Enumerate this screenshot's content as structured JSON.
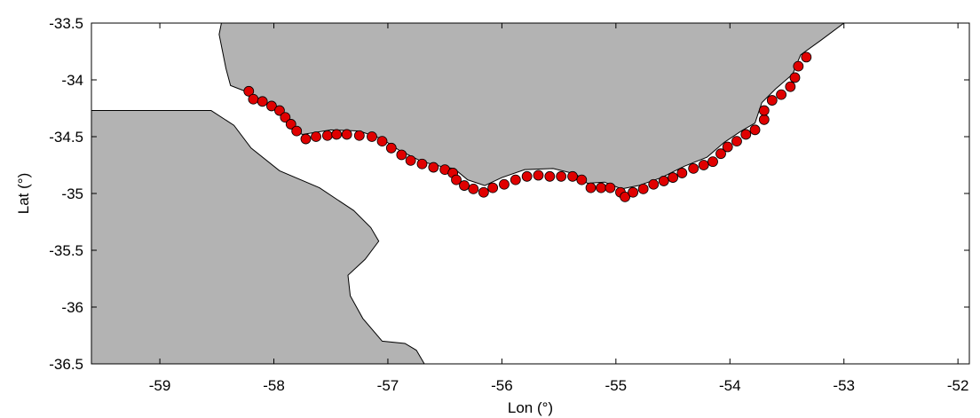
{
  "chart_data": {
    "type": "scatter",
    "xlabel": "Lon (°)",
    "ylabel": "Lat (°)",
    "xlim": [
      -59.6,
      -51.9
    ],
    "ylim": [
      -36.5,
      -33.5
    ],
    "xticks": [
      -59,
      -58,
      -57,
      -56,
      -55,
      -54,
      -53,
      -52
    ],
    "xtick_labels": [
      "-59",
      "-58",
      "-57",
      "-56",
      "-55",
      "-54",
      "-53",
      "-52"
    ],
    "yticks": [
      -33.5,
      -34,
      -34.5,
      -35,
      -35.5,
      -36,
      -36.5
    ],
    "ytick_labels": [
      "-33.5",
      "-34",
      "-34.5",
      "-35",
      "-35.5",
      "-36",
      "-36.5"
    ],
    "grid": false,
    "land_color": "#b3b3b3",
    "water_color": "#ffffff",
    "coast_color": "#000000",
    "marker_color": "#e00000",
    "marker_edge_color": "#000000",
    "coastline_north": [
      [
        -58.46,
        -33.5
      ],
      [
        -58.48,
        -33.6
      ],
      [
        -58.45,
        -33.75
      ],
      [
        -58.42,
        -33.9
      ],
      [
        -58.38,
        -34.05
      ],
      [
        -58.2,
        -34.12
      ],
      [
        -58.05,
        -34.22
      ],
      [
        -57.95,
        -34.3
      ],
      [
        -57.85,
        -34.42
      ],
      [
        -57.75,
        -34.48
      ],
      [
        -57.5,
        -34.44
      ],
      [
        -57.25,
        -34.45
      ],
      [
        -57.05,
        -34.52
      ],
      [
        -56.9,
        -34.62
      ],
      [
        -56.7,
        -34.72
      ],
      [
        -56.5,
        -34.77
      ],
      [
        -56.42,
        -34.78
      ],
      [
        -56.3,
        -34.88
      ],
      [
        -56.15,
        -34.93
      ],
      [
        -56.0,
        -34.86
      ],
      [
        -55.8,
        -34.79
      ],
      [
        -55.55,
        -34.78
      ],
      [
        -55.35,
        -34.83
      ],
      [
        -55.25,
        -34.91
      ],
      [
        -55.1,
        -34.9
      ],
      [
        -54.95,
        -34.96
      ],
      [
        -54.8,
        -34.93
      ],
      [
        -54.6,
        -34.86
      ],
      [
        -54.4,
        -34.76
      ],
      [
        -54.2,
        -34.68
      ],
      [
        -54.05,
        -34.55
      ],
      [
        -53.9,
        -34.45
      ],
      [
        -53.78,
        -34.38
      ],
      [
        -53.72,
        -34.2
      ],
      [
        -53.6,
        -34.08
      ],
      [
        -53.45,
        -33.95
      ],
      [
        -53.38,
        -33.78
      ],
      [
        -53.2,
        -33.65
      ],
      [
        -53.0,
        -33.5
      ]
    ],
    "west_coast": [
      [
        -58.55,
        -34.27
      ],
      [
        -58.35,
        -34.4
      ],
      [
        -58.2,
        -34.6
      ],
      [
        -57.95,
        -34.8
      ],
      [
        -57.6,
        -34.95
      ],
      [
        -57.3,
        -35.15
      ],
      [
        -57.15,
        -35.3
      ],
      [
        -57.08,
        -35.42
      ],
      [
        -57.2,
        -35.58
      ],
      [
        -57.35,
        -35.72
      ],
      [
        -57.33,
        -35.9
      ],
      [
        -57.22,
        -36.1
      ],
      [
        -57.05,
        -36.3
      ],
      [
        -56.85,
        -36.32
      ],
      [
        -56.75,
        -36.38
      ],
      [
        -56.68,
        -36.5
      ]
    ],
    "points": [
      [
        -58.22,
        -34.1
      ],
      [
        -58.18,
        -34.17
      ],
      [
        -58.1,
        -34.19
      ],
      [
        -58.02,
        -34.23
      ],
      [
        -57.95,
        -34.27
      ],
      [
        -57.9,
        -34.33
      ],
      [
        -57.85,
        -34.39
      ],
      [
        -57.8,
        -34.45
      ],
      [
        -57.72,
        -34.52
      ],
      [
        -57.63,
        -34.5
      ],
      [
        -57.53,
        -34.49
      ],
      [
        -57.45,
        -34.48
      ],
      [
        -57.36,
        -34.48
      ],
      [
        -57.25,
        -34.49
      ],
      [
        -57.14,
        -34.5
      ],
      [
        -57.05,
        -34.54
      ],
      [
        -56.97,
        -34.6
      ],
      [
        -56.88,
        -34.66
      ],
      [
        -56.8,
        -34.71
      ],
      [
        -56.7,
        -34.74
      ],
      [
        -56.6,
        -34.77
      ],
      [
        -56.5,
        -34.79
      ],
      [
        -56.43,
        -34.82
      ],
      [
        -56.4,
        -34.88
      ],
      [
        -56.33,
        -34.93
      ],
      [
        -56.25,
        -34.96
      ],
      [
        -56.16,
        -34.99
      ],
      [
        -56.08,
        -34.95
      ],
      [
        -55.98,
        -34.92
      ],
      [
        -55.88,
        -34.88
      ],
      [
        -55.78,
        -34.85
      ],
      [
        -55.68,
        -34.84
      ],
      [
        -55.58,
        -34.85
      ],
      [
        -55.48,
        -34.85
      ],
      [
        -55.38,
        -34.85
      ],
      [
        -55.3,
        -34.88
      ],
      [
        -55.22,
        -34.95
      ],
      [
        -55.13,
        -34.95
      ],
      [
        -55.05,
        -34.95
      ],
      [
        -54.96,
        -34.99
      ],
      [
        -54.92,
        -35.03
      ],
      [
        -54.85,
        -34.99
      ],
      [
        -54.76,
        -34.96
      ],
      [
        -54.67,
        -34.92
      ],
      [
        -54.58,
        -34.89
      ],
      [
        -54.5,
        -34.86
      ],
      [
        -54.42,
        -34.82
      ],
      [
        -54.32,
        -34.78
      ],
      [
        -54.23,
        -34.75
      ],
      [
        -54.15,
        -34.72
      ],
      [
        -54.08,
        -34.65
      ],
      [
        -54.02,
        -34.59
      ],
      [
        -53.94,
        -34.54
      ],
      [
        -53.86,
        -34.48
      ],
      [
        -53.78,
        -34.44
      ],
      [
        -53.7,
        -34.35
      ],
      [
        -53.7,
        -34.27
      ],
      [
        -53.63,
        -34.18
      ],
      [
        -53.55,
        -34.13
      ],
      [
        -53.47,
        -34.06
      ],
      [
        -53.43,
        -33.98
      ],
      [
        -53.4,
        -33.88
      ],
      [
        -53.33,
        -33.8
      ]
    ]
  }
}
